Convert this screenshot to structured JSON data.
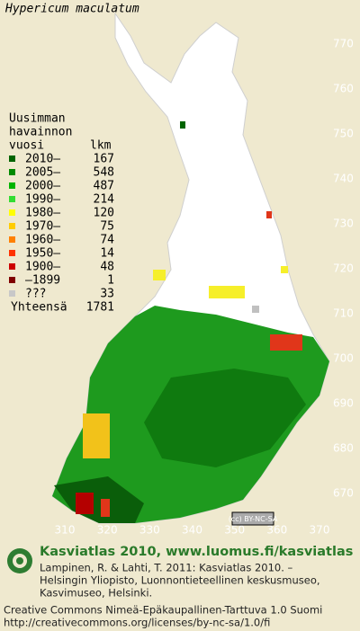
{
  "title": "Hypericum maculatum",
  "legend": {
    "heading": [
      "Uusimman",
      "havainnon",
      "vuosi"
    ],
    "count_heading": "lkm",
    "rows": [
      {
        "period": "2010–",
        "count": 167,
        "color": "#006400"
      },
      {
        "period": "2005–",
        "count": 548,
        "color": "#008a00"
      },
      {
        "period": "2000–",
        "count": 487,
        "color": "#00b400"
      },
      {
        "period": "1990–",
        "count": 214,
        "color": "#33dd33"
      },
      {
        "period": "1980–",
        "count": 120,
        "color": "#ffff00"
      },
      {
        "period": "1970–",
        "count": 75,
        "color": "#ffcc00"
      },
      {
        "period": "1960–",
        "count": 74,
        "color": "#ff8000"
      },
      {
        "period": "1950–",
        "count": 14,
        "color": "#ff3300"
      },
      {
        "period": "1900–",
        "count": 48,
        "color": "#cc0000"
      },
      {
        "period": "–1899",
        "count": 1,
        "color": "#800000"
      },
      {
        "period": "???",
        "count": 33,
        "color": "#c8c8c8"
      }
    ],
    "total_label": "Yhteensä",
    "total": 1781
  },
  "grid": {
    "x_labels": [
      310,
      320,
      330,
      340,
      350,
      360,
      370
    ],
    "y_labels": [
      670,
      680,
      690,
      700,
      710,
      720,
      730,
      740,
      750,
      760,
      770
    ]
  },
  "badge": "(cc) BY-NC-SA",
  "footer": {
    "heading": "Kasviatlas 2010, www.luomus.fi/kasviatlas",
    "citation": [
      "Lampinen, R. & Lahti, T. 2011: Kasviatlas 2010. –",
      "Helsingin Yliopisto, Luonnontieteellinen keskusmuseo,",
      "Kasvimuseo, Helsinki."
    ],
    "license": [
      "Creative Commons Nimeä-Epäkaupallinen-Tarttuva 1.0 Suomi",
      "http://creativecommons.org/licenses/by-nc-sa/1.0/fi"
    ]
  }
}
